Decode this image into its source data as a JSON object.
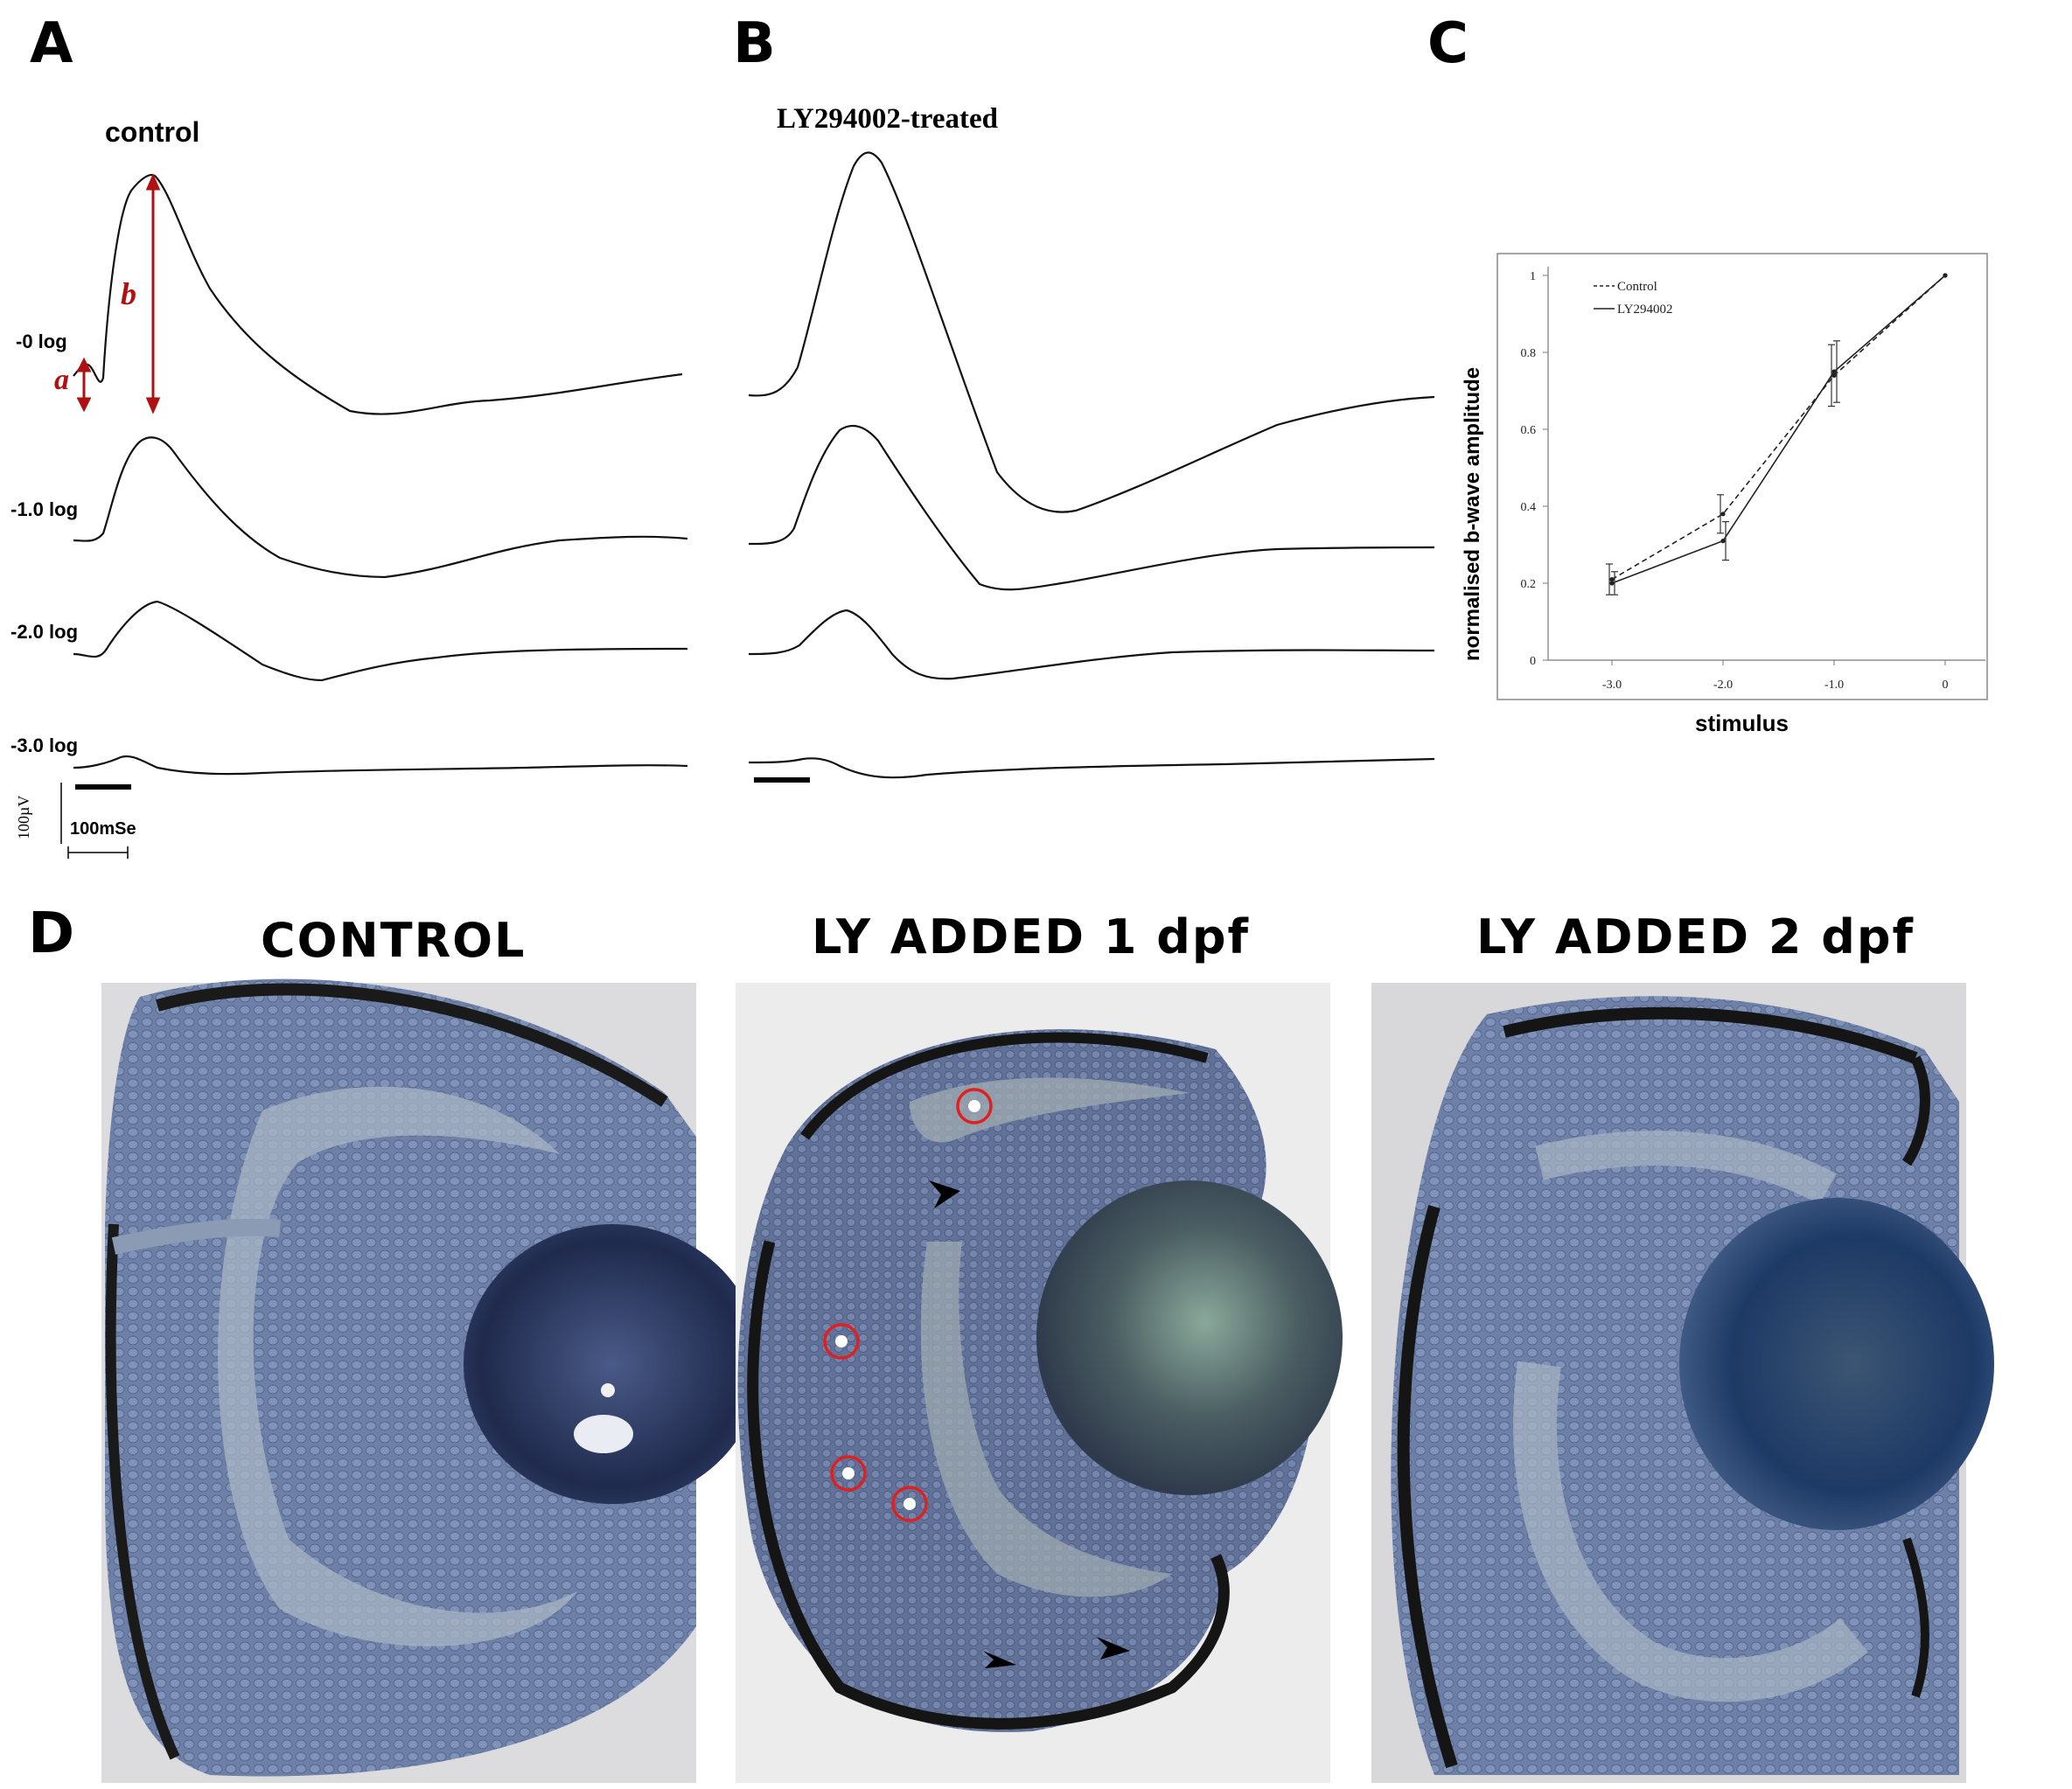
{
  "panels": {
    "A": {
      "letter": "A",
      "title": "control"
    },
    "B": {
      "letter": "B",
      "title": "LY294002-treated"
    },
    "C": {
      "letter": "C"
    },
    "D": {
      "letter": "D"
    }
  },
  "traces": {
    "labels": [
      "-0 log",
      "-1.0 log",
      "-2.0 log",
      "-3.0 log"
    ],
    "annot_a": "a",
    "annot_b": "b",
    "scale_voltage": "100µV",
    "scale_time": "100mSe",
    "arrow_color": "#b01010"
  },
  "chart_data": {
    "type": "line",
    "xlabel": "stimulus",
    "ylabel": "normalised b-wave amplitude",
    "categories": [
      "-3.0",
      "-2.0",
      "-1.0",
      "0"
    ],
    "ylim": [
      0,
      1
    ],
    "yticks": [
      "0",
      "0.2",
      "0.4",
      "0.6",
      "0.8",
      "1"
    ],
    "legend_position": "top-left",
    "series": [
      {
        "name": "Control",
        "style": "dashed",
        "values": [
          0.21,
          0.38,
          0.74,
          1.0
        ],
        "errors": [
          0.04,
          0.05,
          0.08,
          0
        ]
      },
      {
        "name": "LY294002",
        "style": "solid",
        "values": [
          0.2,
          0.31,
          0.75,
          1.0
        ],
        "errors": [
          0.03,
          0.05,
          0.08,
          0
        ]
      }
    ]
  },
  "micrographs": {
    "titles": [
      "CONTROL",
      "LY ADDED 1 dpf",
      "LY ADDED 2 dpf"
    ],
    "marker_color": "#e02020"
  }
}
